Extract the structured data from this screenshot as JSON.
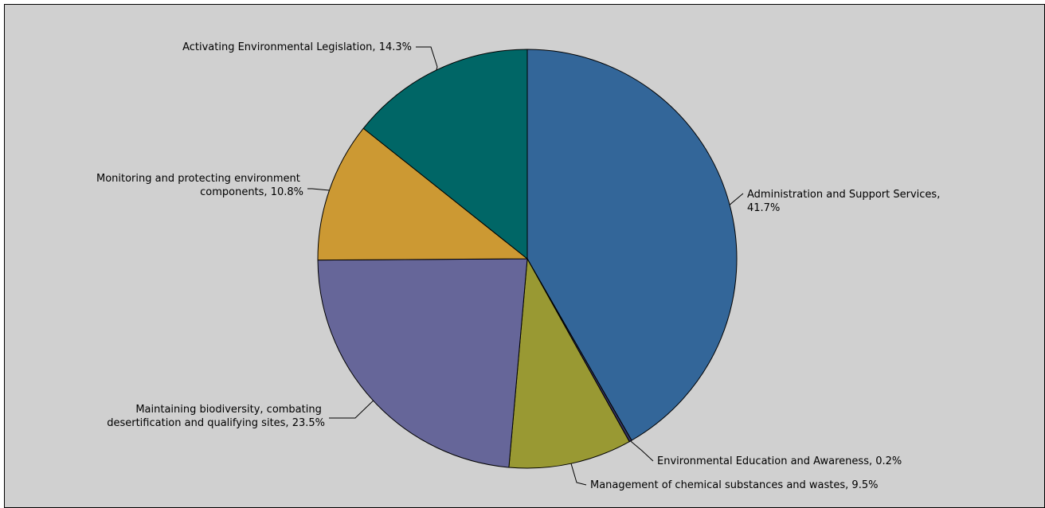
{
  "chart_data": {
    "type": "pie",
    "title": "",
    "slices": [
      {
        "label": "Administration and Support Services,",
        "label2": "41.7%",
        "value": 41.7,
        "color": "#336699"
      },
      {
        "label": "Environmental Education and Awareness, 0.2%",
        "label2": "",
        "value": 0.2,
        "color": "#33335f"
      },
      {
        "label": "Management of chemical substances and wastes, 9.5%",
        "label2": "",
        "value": 9.5,
        "color": "#999933"
      },
      {
        "label": "Maintaining biodiversity, combating",
        "label2": "desertification and qualifying sites, 23.5%",
        "value": 23.5,
        "color": "#666699"
      },
      {
        "label": "Monitoring and protecting environment",
        "label2": "components, 10.8%",
        "value": 10.8,
        "color": "#cc9933"
      },
      {
        "label": "Activating Environmental Legislation, 14.3%",
        "label2": "",
        "value": 14.3,
        "color": "#006666"
      }
    ]
  }
}
